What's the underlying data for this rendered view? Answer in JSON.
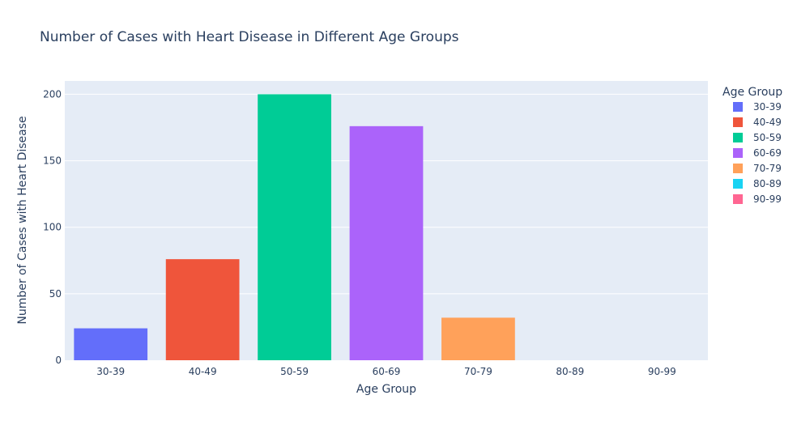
{
  "chart_data": {
    "type": "bar",
    "title": "Number of Cases with Heart Disease in Different Age Groups",
    "xlabel": "Age Group",
    "ylabel": "Number of Cases with Heart Disease",
    "ylim": [
      0,
      210
    ],
    "yticks": [
      0,
      50,
      100,
      150,
      200
    ],
    "grid": true,
    "legend": {
      "title": "Age Group",
      "placement": "right"
    },
    "categories": [
      "30-39",
      "40-49",
      "50-59",
      "60-69",
      "70-79",
      "80-89",
      "90-99"
    ],
    "series": [
      {
        "name": "30-39",
        "category": "30-39",
        "value": 24,
        "color": "#636efa"
      },
      {
        "name": "40-49",
        "category": "40-49",
        "value": 76,
        "color": "#ef553b"
      },
      {
        "name": "50-59",
        "category": "50-59",
        "value": 200,
        "color": "#00cc96"
      },
      {
        "name": "60-69",
        "category": "60-69",
        "value": 176,
        "color": "#ab63fa"
      },
      {
        "name": "70-79",
        "category": "70-79",
        "value": 32,
        "color": "#ffa15a"
      },
      {
        "name": "80-89",
        "category": "80-89",
        "value": 0,
        "color": "#19d3f3"
      },
      {
        "name": "90-99",
        "category": "90-99",
        "value": 0,
        "color": "#ff6692"
      }
    ],
    "colors": {
      "plot_background": "#e5ecf6",
      "gridline": "#ffffff",
      "text": "#2a3f5f"
    }
  }
}
